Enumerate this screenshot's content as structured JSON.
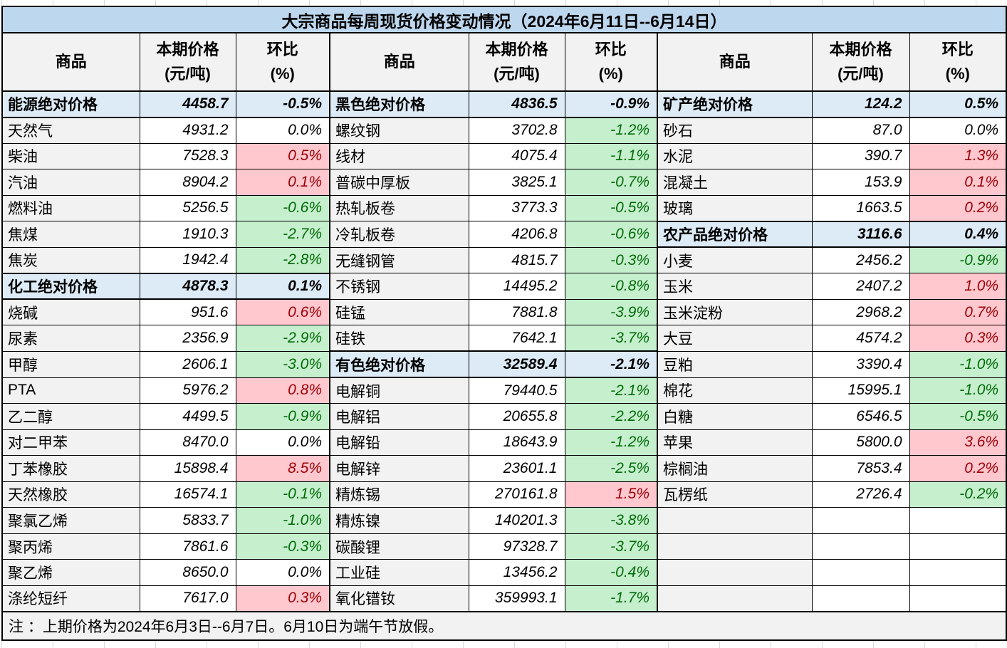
{
  "title": "大宗商品每周现货价格变动情况（2024年6月11日--6月14日）",
  "header": {
    "commodity": "商品",
    "price": "本期价格",
    "price_unit": "(元/吨)",
    "pct": "环比",
    "pct_unit": "(%)"
  },
  "note": "注 ：上期价格为2024年6月3日--6月7日。6月10日为端午节放假。",
  "colors": {
    "title_bg": "#BDD7EE",
    "section_bg": "#DDEBF7",
    "name_bg": "#F2F2F2",
    "up_bg": "#FFC7CE",
    "up_text": "#9C0006",
    "down_bg": "#C6EFCE",
    "down_text": "#006B06",
    "border": "#000000"
  },
  "groups": [
    {
      "rows": [
        {
          "name": "能源绝对价格",
          "price": "4458.7",
          "pct": "-0.5%",
          "type": "section"
        },
        {
          "name": "天然气",
          "price": "4931.2",
          "pct": "0.0%",
          "type": "flat"
        },
        {
          "name": "柴油",
          "price": "7528.3",
          "pct": "0.5%",
          "type": "up"
        },
        {
          "name": "汽油",
          "price": "8904.2",
          "pct": "0.1%",
          "type": "up"
        },
        {
          "name": "燃料油",
          "price": "5256.5",
          "pct": "-0.6%",
          "type": "down"
        },
        {
          "name": "焦煤",
          "price": "1910.3",
          "pct": "-2.7%",
          "type": "down"
        },
        {
          "name": "焦炭",
          "price": "1942.4",
          "pct": "-2.8%",
          "type": "down"
        },
        {
          "name": "化工绝对价格",
          "price": "4878.3",
          "pct": "0.1%",
          "type": "section"
        },
        {
          "name": "烧碱",
          "price": "951.6",
          "pct": "0.6%",
          "type": "up"
        },
        {
          "name": "尿素",
          "price": "2356.9",
          "pct": "-2.9%",
          "type": "down"
        },
        {
          "name": "甲醇",
          "price": "2606.1",
          "pct": "-3.0%",
          "type": "down"
        },
        {
          "name": "PTA",
          "price": "5976.2",
          "pct": "0.8%",
          "type": "up"
        },
        {
          "name": "乙二醇",
          "price": "4499.5",
          "pct": "-0.9%",
          "type": "down"
        },
        {
          "name": "对二甲苯",
          "price": "8470.0",
          "pct": "0.0%",
          "type": "flat"
        },
        {
          "name": "丁苯橡胶",
          "price": "15898.4",
          "pct": "8.5%",
          "type": "up"
        },
        {
          "name": "天然橡胶",
          "price": "16574.1",
          "pct": "-0.1%",
          "type": "down"
        },
        {
          "name": "聚氯乙烯",
          "price": "5833.7",
          "pct": "-1.0%",
          "type": "down"
        },
        {
          "name": "聚丙烯",
          "price": "7861.6",
          "pct": "-0.3%",
          "type": "down"
        },
        {
          "name": "聚乙烯",
          "price": "8650.0",
          "pct": "0.0%",
          "type": "flat"
        },
        {
          "name": "涤纶短纤",
          "price": "7617.0",
          "pct": "0.3%",
          "type": "up"
        }
      ]
    },
    {
      "rows": [
        {
          "name": "黑色绝对价格",
          "price": "4836.5",
          "pct": "-0.9%",
          "type": "section"
        },
        {
          "name": "螺纹钢",
          "price": "3702.8",
          "pct": "-1.2%",
          "type": "down"
        },
        {
          "name": "线材",
          "price": "4075.4",
          "pct": "-1.1%",
          "type": "down"
        },
        {
          "name": "普碳中厚板",
          "price": "3825.1",
          "pct": "-0.7%",
          "type": "down"
        },
        {
          "name": "热轧板卷",
          "price": "3773.3",
          "pct": "-0.5%",
          "type": "down"
        },
        {
          "name": "冷轧板卷",
          "price": "4206.8",
          "pct": "-0.6%",
          "type": "down"
        },
        {
          "name": "无缝钢管",
          "price": "4815.7",
          "pct": "-0.3%",
          "type": "down"
        },
        {
          "name": "不锈钢",
          "price": "14495.2",
          "pct": "-0.8%",
          "type": "down"
        },
        {
          "name": "硅锰",
          "price": "7881.8",
          "pct": "-3.9%",
          "type": "down"
        },
        {
          "name": "硅铁",
          "price": "7642.1",
          "pct": "-3.7%",
          "type": "down"
        },
        {
          "name": "有色绝对价格",
          "price": "32589.4",
          "pct": "-2.1%",
          "type": "section"
        },
        {
          "name": "电解铜",
          "price": "79440.5",
          "pct": "-2.1%",
          "type": "down"
        },
        {
          "name": "电解铝",
          "price": "20655.8",
          "pct": "-2.2%",
          "type": "down"
        },
        {
          "name": "电解铅",
          "price": "18643.9",
          "pct": "-1.2%",
          "type": "down"
        },
        {
          "name": "电解锌",
          "price": "23601.1",
          "pct": "-2.5%",
          "type": "down"
        },
        {
          "name": "精炼锡",
          "price": "270161.8",
          "pct": "1.5%",
          "type": "up"
        },
        {
          "name": "精炼镍",
          "price": "140201.3",
          "pct": "-3.8%",
          "type": "down"
        },
        {
          "name": "碳酸锂",
          "price": "97328.7",
          "pct": "-3.7%",
          "type": "down"
        },
        {
          "name": "工业硅",
          "price": "13456.2",
          "pct": "-0.4%",
          "type": "down"
        },
        {
          "name": "氧化镨钕",
          "price": "359993.1",
          "pct": "-1.7%",
          "type": "down"
        }
      ]
    },
    {
      "rows": [
        {
          "name": "矿产绝对价格",
          "price": "124.2",
          "pct": "0.5%",
          "type": "section"
        },
        {
          "name": "砂石",
          "price": "87.0",
          "pct": "0.0%",
          "type": "flat"
        },
        {
          "name": "水泥",
          "price": "390.7",
          "pct": "1.3%",
          "type": "up"
        },
        {
          "name": "混凝土",
          "price": "153.9",
          "pct": "0.1%",
          "type": "up"
        },
        {
          "name": "玻璃",
          "price": "1663.5",
          "pct": "0.2%",
          "type": "up"
        },
        {
          "name": "农产品绝对价格",
          "price": "3116.6",
          "pct": "0.4%",
          "type": "section"
        },
        {
          "name": "小麦",
          "price": "2456.2",
          "pct": "-0.9%",
          "type": "down"
        },
        {
          "name": "玉米",
          "price": "2407.2",
          "pct": "1.0%",
          "type": "up"
        },
        {
          "name": "玉米淀粉",
          "price": "2968.2",
          "pct": "0.7%",
          "type": "up"
        },
        {
          "name": "大豆",
          "price": "4574.2",
          "pct": "0.3%",
          "type": "up"
        },
        {
          "name": "豆粕",
          "price": "3390.4",
          "pct": "-1.0%",
          "type": "down"
        },
        {
          "name": "棉花",
          "price": "15995.1",
          "pct": "-1.0%",
          "type": "down"
        },
        {
          "name": "白糖",
          "price": "6546.5",
          "pct": "-0.5%",
          "type": "down"
        },
        {
          "name": "苹果",
          "price": "5800.0",
          "pct": "3.6%",
          "type": "up"
        },
        {
          "name": "棕榈油",
          "price": "7853.4",
          "pct": "0.2%",
          "type": "up"
        },
        {
          "name": "瓦楞纸",
          "price": "2726.4",
          "pct": "-0.2%",
          "type": "down"
        },
        {
          "name": "",
          "price": "",
          "pct": "",
          "type": "empty"
        },
        {
          "name": "",
          "price": "",
          "pct": "",
          "type": "empty"
        },
        {
          "name": "",
          "price": "",
          "pct": "",
          "type": "empty"
        },
        {
          "name": "",
          "price": "",
          "pct": "",
          "type": "empty"
        }
      ]
    }
  ]
}
